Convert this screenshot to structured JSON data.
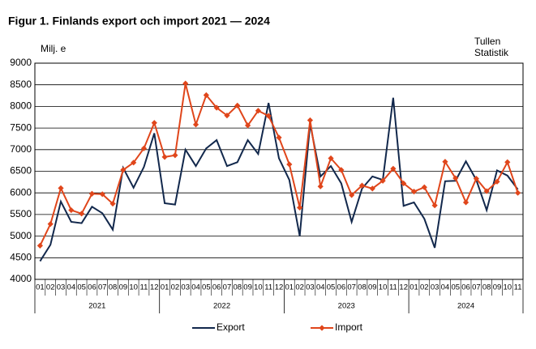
{
  "chart_data": {
    "type": "line",
    "title": "Figur 1. Finlands export och import 2021 — 2024",
    "y_label": "Milj. e",
    "source": [
      "Tullen",
      "Statistik"
    ],
    "categories": [
      "01",
      "02",
      "03",
      "04",
      "05",
      "06",
      "07",
      "08",
      "09",
      "10",
      "11",
      "12",
      "01",
      "02",
      "03",
      "04",
      "05",
      "06",
      "07",
      "08",
      "09",
      "10",
      "11",
      "12",
      "01",
      "02",
      "03",
      "04",
      "05",
      "06",
      "07",
      "08",
      "09",
      "10",
      "11",
      "12",
      "01",
      "02",
      "03",
      "04",
      "05",
      "06",
      "07",
      "08",
      "09",
      "10",
      "11"
    ],
    "years": [
      "2021",
      "2022",
      "2023",
      "2024"
    ],
    "series": [
      {
        "name": "Export",
        "color": "#12284c",
        "values": [
          4420,
          4800,
          5800,
          5330,
          5300,
          5680,
          5530,
          5150,
          6580,
          6120,
          6600,
          7380,
          5760,
          5730,
          7000,
          6620,
          7030,
          7220,
          6620,
          6710,
          7220,
          6900,
          8080,
          6800,
          6300,
          5000,
          7600,
          6380,
          6620,
          6220,
          5330,
          6100,
          6380,
          6300,
          8200,
          5700,
          5780,
          5400,
          4730,
          6270,
          6280,
          6730,
          6300,
          5600,
          6520,
          6400,
          6080
        ]
      },
      {
        "name": "Import",
        "color": "#e0461b",
        "marker": "diamond",
        "values": [
          4780,
          5280,
          6110,
          5600,
          5520,
          5980,
          5970,
          5750,
          6530,
          6700,
          7030,
          7620,
          6830,
          6870,
          8530,
          7580,
          8260,
          7970,
          7790,
          8020,
          7560,
          7900,
          7780,
          7280,
          6660,
          5660,
          7680,
          6150,
          6800,
          6530,
          5950,
          6170,
          6100,
          6280,
          6560,
          6220,
          6030,
          6130,
          5710,
          6720,
          6340,
          5780,
          6330,
          6040,
          6260,
          6710,
          6000
        ]
      }
    ],
    "ylim": [
      4000,
      9000
    ],
    "yticks": [
      4000,
      4500,
      5000,
      5500,
      6000,
      6500,
      7000,
      7500,
      8000,
      8500,
      9000
    ],
    "grid": true
  }
}
